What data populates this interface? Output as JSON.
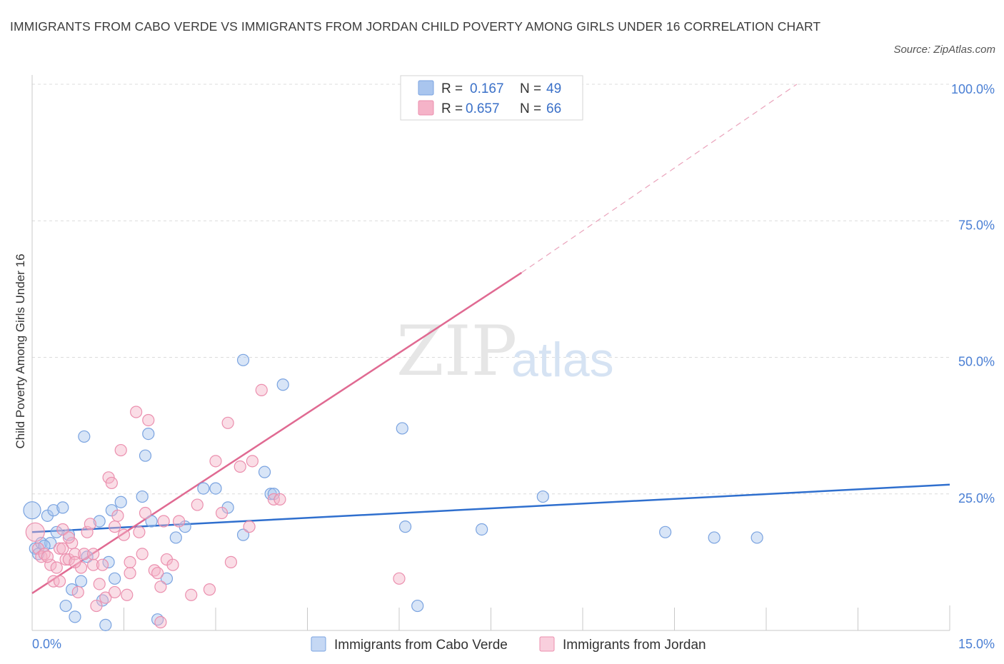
{
  "title": "IMMIGRANTS FROM CABO VERDE VS IMMIGRANTS FROM JORDAN CHILD POVERTY AMONG GIRLS UNDER 16 CORRELATION CHART",
  "source": "Source: ZipAtlas.com",
  "watermark": {
    "zip": "ZIP",
    "atlas": "atlas"
  },
  "legend_box": {
    "rows": [
      {
        "r_label": "R =",
        "r_value": "0.167",
        "n_label": "N =",
        "n_value": "49",
        "color": "#a9c5ee"
      },
      {
        "r_label": "R =",
        "r_value": "0.657",
        "n_label": "N =",
        "n_value": "66",
        "color": "#f5b3c8"
      }
    ]
  },
  "chart_data": {
    "type": "scatter",
    "title": "IMMIGRANTS FROM CABO VERDE VS IMMIGRANTS FROM JORDAN CHILD POVERTY AMONG GIRLS UNDER 16 CORRELATION CHART",
    "xlabel": "",
    "ylabel": "Child Poverty Among Girls Under 16",
    "xlim": [
      0,
      15
    ],
    "ylim": [
      0,
      100
    ],
    "x_tick_labels": [
      "0.0%",
      "15.0%"
    ],
    "y_ticks": [
      25,
      50,
      75,
      100
    ],
    "y_tick_labels": [
      "25.0%",
      "50.0%",
      "75.0%",
      "100.0%"
    ],
    "grid": true,
    "legend_position": "top-center",
    "series": [
      {
        "name": "Immigrants from Cabo Verde",
        "color": "#a9c5ee",
        "line_color": "#2f6fce",
        "trend": {
          "x": [
            0,
            15
          ],
          "y": [
            18.0,
            26.7
          ],
          "dashed_beyond": null
        },
        "points": [
          [
            0.0,
            22
          ],
          [
            0.05,
            15
          ],
          [
            0.1,
            14
          ],
          [
            0.15,
            16
          ],
          [
            0.25,
            21
          ],
          [
            0.3,
            16
          ],
          [
            0.35,
            22
          ],
          [
            0.4,
            18
          ],
          [
            0.5,
            22.5
          ],
          [
            0.55,
            4.5
          ],
          [
            0.6,
            17.5
          ],
          [
            0.65,
            7.5
          ],
          [
            0.7,
            2.5
          ],
          [
            0.8,
            9
          ],
          [
            0.85,
            35.5
          ],
          [
            0.9,
            13.5
          ],
          [
            1.1,
            20
          ],
          [
            1.15,
            5.5
          ],
          [
            1.2,
            1
          ],
          [
            1.25,
            12.5
          ],
          [
            1.3,
            22
          ],
          [
            1.35,
            9.5
          ],
          [
            1.45,
            23.5
          ],
          [
            1.8,
            24.5
          ],
          [
            1.85,
            32
          ],
          [
            1.9,
            36
          ],
          [
            2.05,
            2
          ],
          [
            2.2,
            9.5
          ],
          [
            2.35,
            17
          ],
          [
            2.5,
            19
          ],
          [
            2.8,
            26
          ],
          [
            3.0,
            26
          ],
          [
            3.2,
            22.5
          ],
          [
            3.45,
            17.5
          ],
          [
            3.45,
            49.5
          ],
          [
            3.8,
            29
          ],
          [
            3.9,
            25
          ],
          [
            3.95,
            25
          ],
          [
            4.1,
            45
          ],
          [
            6.05,
            37
          ],
          [
            6.1,
            19
          ],
          [
            6.3,
            4.5
          ],
          [
            7.35,
            18.5
          ],
          [
            8.35,
            24.5
          ],
          [
            10.35,
            18
          ],
          [
            11.15,
            17
          ],
          [
            11.85,
            17
          ],
          [
            1.95,
            20
          ],
          [
            0.2,
            15.5
          ]
        ],
        "point_sizes": [
          2,
          1,
          1,
          1,
          1,
          1,
          1,
          1,
          1,
          1,
          1,
          1,
          1,
          1,
          1,
          1,
          1,
          1,
          1,
          1,
          1,
          1,
          1,
          1,
          1,
          1,
          1,
          1,
          1,
          1,
          1,
          1,
          1,
          1,
          1,
          1,
          1,
          1,
          1,
          1,
          1,
          1,
          1,
          1,
          1,
          1,
          1,
          1,
          1
        ]
      },
      {
        "name": "Immigrants from Jordan",
        "color": "#f5b3c8",
        "line_color": "#e06a92",
        "trend": {
          "x": [
            0,
            8.0
          ],
          "y": [
            6.8,
            65.5
          ],
          "dashed_to": [
            12.5,
            100
          ]
        },
        "points": [
          [
            0.05,
            18
          ],
          [
            0.1,
            15
          ],
          [
            0.15,
            13.5
          ],
          [
            0.2,
            14
          ],
          [
            0.3,
            12
          ],
          [
            0.35,
            9
          ],
          [
            0.4,
            11.5
          ],
          [
            0.45,
            15
          ],
          [
            0.5,
            18.5
          ],
          [
            0.55,
            13
          ],
          [
            0.6,
            13
          ],
          [
            0.65,
            16
          ],
          [
            0.7,
            14
          ],
          [
            0.75,
            7
          ],
          [
            0.8,
            11.5
          ],
          [
            0.85,
            14
          ],
          [
            0.9,
            18
          ],
          [
            0.95,
            19.5
          ],
          [
            1.0,
            12
          ],
          [
            1.05,
            4.5
          ],
          [
            1.1,
            8.5
          ],
          [
            1.15,
            12
          ],
          [
            1.2,
            6
          ],
          [
            1.25,
            28
          ],
          [
            1.3,
            27
          ],
          [
            1.35,
            19
          ],
          [
            1.4,
            21
          ],
          [
            1.45,
            33
          ],
          [
            1.5,
            17.5
          ],
          [
            1.55,
            6.5
          ],
          [
            1.6,
            10.5
          ],
          [
            1.7,
            40
          ],
          [
            1.75,
            18
          ],
          [
            1.8,
            14
          ],
          [
            1.85,
            21.5
          ],
          [
            1.9,
            38.5
          ],
          [
            2.0,
            11
          ],
          [
            2.05,
            10.5
          ],
          [
            2.1,
            8
          ],
          [
            2.15,
            20
          ],
          [
            2.2,
            13
          ],
          [
            2.3,
            12
          ],
          [
            2.4,
            20
          ],
          [
            2.6,
            6.5
          ],
          [
            2.7,
            23
          ],
          [
            2.9,
            7.5
          ],
          [
            3.0,
            31
          ],
          [
            3.1,
            21.5
          ],
          [
            3.2,
            38
          ],
          [
            3.25,
            12.5
          ],
          [
            3.4,
            30
          ],
          [
            3.55,
            19
          ],
          [
            3.6,
            31
          ],
          [
            3.75,
            44
          ],
          [
            3.95,
            24
          ],
          [
            4.05,
            24
          ],
          [
            6.0,
            9.5
          ],
          [
            1.35,
            7
          ],
          [
            0.5,
            15
          ],
          [
            0.6,
            17
          ],
          [
            0.7,
            12.5
          ],
          [
            1.0,
            14
          ],
          [
            2.1,
            1.5
          ],
          [
            1.6,
            12.5
          ],
          [
            0.25,
            13.5
          ],
          [
            0.45,
            9
          ]
        ],
        "point_sizes": [
          3,
          1,
          1,
          1,
          1,
          1,
          1,
          1,
          1,
          1,
          1,
          1,
          1,
          1,
          1,
          1,
          1,
          1,
          1,
          1,
          1,
          1,
          1,
          1,
          1,
          1,
          1,
          1,
          1,
          1,
          1,
          1,
          1,
          1,
          1,
          1,
          1,
          1,
          1,
          1,
          1,
          1,
          1,
          1,
          1,
          1,
          1,
          1,
          1,
          1,
          1,
          1,
          1,
          1,
          1,
          1,
          1,
          1,
          1,
          1,
          1,
          1,
          1,
          1,
          1,
          1
        ]
      }
    ]
  }
}
